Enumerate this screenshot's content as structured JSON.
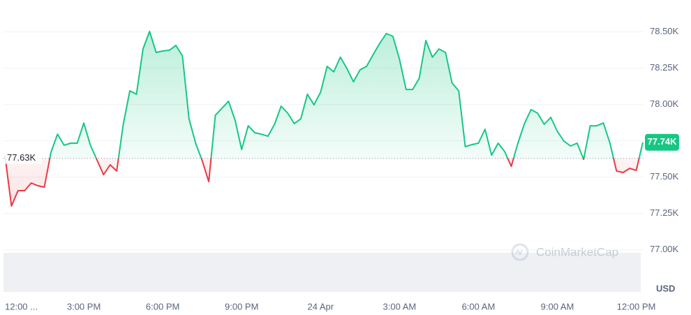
{
  "chart_data": {
    "type": "line",
    "x": [
      0,
      0.25,
      0.5,
      0.75,
      1,
      1.25,
      1.5,
      1.75,
      2,
      2.25,
      2.5,
      2.75,
      3,
      3.25,
      3.5,
      3.75,
      4,
      4.25,
      4.5,
      4.75,
      5,
      5.25,
      5.5,
      5.75,
      6,
      6.25,
      6.5,
      6.75,
      7,
      7.25,
      7.5,
      7.75,
      8,
      8.25,
      8.5,
      8.75,
      9,
      9.25,
      9.5,
      9.75,
      10,
      10.25,
      10.5,
      10.75,
      11,
      11.25,
      11.5,
      11.75,
      12,
      12.25,
      12.5,
      12.75,
      13,
      13.25,
      13.5,
      13.75,
      14,
      14.25,
      14.5,
      14.75,
      15,
      15.25,
      15.5,
      15.75,
      16,
      16.25,
      16.5,
      16.75,
      17,
      17.25,
      17.5,
      17.75,
      18,
      18.25,
      18.5,
      18.75,
      19,
      19.25,
      19.5,
      19.75,
      20,
      20.25,
      20.5,
      20.75,
      21,
      21.25,
      21.5,
      21.75,
      22,
      22.25,
      22.5,
      22.75,
      23,
      23.25,
      23.5,
      23.75,
      24,
      24.25
    ],
    "values": [
      77652,
      77301,
      77407,
      77407,
      77460,
      77441,
      77431,
      77671,
      77796,
      77720,
      77734,
      77734,
      77873,
      77720,
      77619,
      77517,
      77585,
      77542,
      77864,
      78095,
      78071,
      78383,
      78504,
      78359,
      78369,
      78374,
      78407,
      78335,
      77902,
      77734,
      77614,
      77469,
      77926,
      77974,
      78023,
      77893,
      77691,
      77854,
      77806,
      77796,
      77782,
      77864,
      77989,
      77941,
      77869,
      77902,
      78071,
      77998,
      78085,
      78263,
      78225,
      78326,
      78249,
      78157,
      78239,
      78263,
      78345,
      78422,
      78489,
      78470,
      78311,
      78104,
      78104,
      78181,
      78441,
      78326,
      78383,
      78359,
      78148,
      78095,
      77710,
      77724,
      77734,
      77830,
      77652,
      77734,
      77676,
      77575,
      77734,
      77869,
      77965,
      77941,
      77864,
      77912,
      77816,
      77748,
      77715,
      77734,
      77623,
      77854,
      77854,
      77873,
      77734,
      77542,
      77532,
      77561,
      77547,
      77740
    ],
    "color_up": "#16c784",
    "color_down": "#ea3943",
    "baseline": {
      "value": 77630,
      "label": "77.63K"
    },
    "last_price": {
      "value": 77740,
      "label": "77.74K"
    },
    "xlim": [
      0,
      24.25
    ],
    "xticks": [
      {
        "value": 0,
        "label": "12:00 ..."
      },
      {
        "value": 3,
        "label": "3:00 PM"
      },
      {
        "value": 6,
        "label": "6:00 PM"
      },
      {
        "value": 9,
        "label": "9:00 PM"
      },
      {
        "value": 12,
        "label": "24 Apr"
      },
      {
        "value": 15,
        "label": "3:00 AM"
      },
      {
        "value": 18,
        "label": "6:00 AM"
      },
      {
        "value": 21,
        "label": "9:00 AM"
      },
      {
        "value": 24,
        "label": "12:00 PM"
      }
    ],
    "ylim": [
      76700,
      78720
    ],
    "yticks": [
      {
        "value": 77000,
        "label": "77.00K"
      },
      {
        "value": 77250,
        "label": "77.25K"
      },
      {
        "value": 77500,
        "label": "77.50K"
      },
      {
        "value": 77750,
        "label": "77.75K"
      },
      {
        "value": 78000,
        "label": "78.00K"
      },
      {
        "value": 78250,
        "label": "78.25K"
      },
      {
        "value": 78500,
        "label": "78.50K"
      }
    ],
    "grid": true,
    "y_unit": "USD",
    "watermark": "CoinMarketCap"
  }
}
